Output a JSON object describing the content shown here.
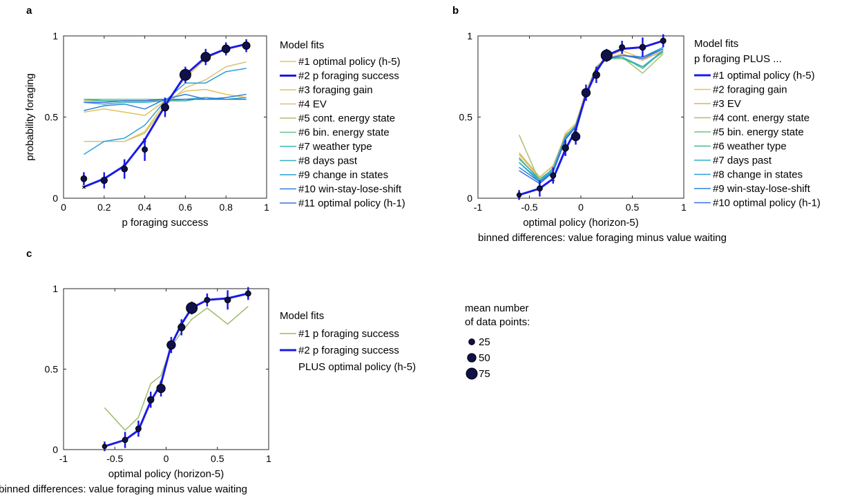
{
  "panel_labels": [
    "a",
    "b",
    "c"
  ],
  "legend_titles": {
    "a": "Model fits",
    "b_line1": "Model fits",
    "b_line2": "p foraging PLUS ...",
    "c": "Model fits"
  },
  "size_legend": {
    "title_line1": "mean number",
    "title_line2": "of data points:",
    "entries": [
      "25",
      "50",
      "75"
    ]
  },
  "chart_data": [
    {
      "id": "a",
      "type": "line",
      "title": "",
      "xlabel": "p foraging success",
      "ylabel": "probability foraging",
      "xlim": [
        0,
        1
      ],
      "ylim": [
        0,
        1
      ],
      "xticks": [
        "0",
        "0.2",
        "0.4",
        "0.6",
        "0.8",
        "1"
      ],
      "yticks": [
        "0",
        "0.5",
        "1"
      ],
      "legend_position": "right",
      "data_points": {
        "x": [
          0.1,
          0.2,
          0.3,
          0.4,
          0.5,
          0.6,
          0.7,
          0.8,
          0.9
        ],
        "y": [
          0.12,
          0.11,
          0.18,
          0.3,
          0.56,
          0.76,
          0.87,
          0.92,
          0.94
        ],
        "err": [
          0.02,
          0.03,
          0.04,
          0.05,
          0.04,
          0.03,
          0.03,
          0.02,
          0.02
        ],
        "n": [
          25,
          30,
          25,
          20,
          40,
          75,
          60,
          45,
          40
        ]
      },
      "series": [
        {
          "name": "#1 optimal policy (h-5)",
          "color": "#e8c84a",
          "width": 1.5,
          "values": [
            0.35,
            0.35,
            0.35,
            0.41,
            0.59,
            0.74,
            0.86,
            0.92,
            0.95
          ]
        },
        {
          "name": "#2 p foraging success",
          "color": "#1a1ae6",
          "width": 3,
          "values": [
            0.07,
            0.12,
            0.2,
            0.36,
            0.57,
            0.76,
            0.87,
            0.92,
            0.95
          ]
        },
        {
          "name": "#3 foraging gain",
          "color": "#e3c25a",
          "width": 1.5,
          "values": [
            0.53,
            0.55,
            0.53,
            0.51,
            0.6,
            0.66,
            0.67,
            0.64,
            0.62
          ]
        },
        {
          "name": "#4 EV",
          "color": "#d7c27a",
          "width": 1.5,
          "values": [
            0.35,
            0.35,
            0.35,
            0.4,
            0.57,
            0.68,
            0.73,
            0.81,
            0.84
          ]
        },
        {
          "name": "#5 cont. energy state",
          "color": "#a9c06a",
          "width": 1.5,
          "values": [
            0.6,
            0.6,
            0.6,
            0.6,
            0.6,
            0.61,
            0.61,
            0.61,
            0.61
          ]
        },
        {
          "name": "#6 bin. energy state",
          "color": "#6cc08a",
          "width": 1.5,
          "values": [
            0.61,
            0.61,
            0.61,
            0.61,
            0.61,
            0.61,
            0.61,
            0.61,
            0.61
          ]
        },
        {
          "name": "#7 weather type",
          "color": "#3ab8a8",
          "width": 1.5,
          "values": [
            0.61,
            0.6,
            0.6,
            0.6,
            0.61,
            0.61,
            0.62,
            0.61,
            0.61
          ]
        },
        {
          "name": "#8 days past",
          "color": "#2fb0c0",
          "width": 1.5,
          "values": [
            0.59,
            0.58,
            0.59,
            0.59,
            0.6,
            0.6,
            0.62,
            0.61,
            0.62
          ]
        },
        {
          "name": "#9 change in states",
          "color": "#2aa0d8",
          "width": 1.5,
          "values": [
            0.27,
            0.35,
            0.37,
            0.45,
            0.6,
            0.71,
            0.71,
            0.78,
            0.8
          ]
        },
        {
          "name": "#10 win-stay-lose-shift",
          "color": "#2a82d8",
          "width": 1.5,
          "values": [
            0.54,
            0.57,
            0.58,
            0.55,
            0.61,
            0.64,
            0.61,
            0.62,
            0.64
          ]
        },
        {
          "name": "#11 optimal policy (h-1)",
          "color": "#3a6ee0",
          "width": 1.5,
          "values": [
            0.59,
            0.59,
            0.6,
            0.6,
            0.61,
            0.61,
            0.61,
            0.61,
            0.61
          ]
        }
      ]
    },
    {
      "id": "b",
      "type": "line",
      "title": "",
      "xlabel": "optimal policy (horizon-5)",
      "xlabel2": "binned differences: value foraging minus value waiting",
      "ylabel": "",
      "xlim": [
        -1,
        1
      ],
      "ylim": [
        0,
        1
      ],
      "xticks": [
        "-1",
        "-0.5",
        "0",
        "0.5",
        "1"
      ],
      "yticks": [
        "0",
        "0.5",
        "1"
      ],
      "legend_position": "right",
      "data_points": {
        "x": [
          -0.6,
          -0.4,
          -0.27,
          -0.15,
          -0.05,
          0.05,
          0.15,
          0.25,
          0.4,
          0.6,
          0.8
        ],
        "y": [
          0.02,
          0.06,
          0.14,
          0.31,
          0.38,
          0.65,
          0.76,
          0.88,
          0.93,
          0.93,
          0.97
        ],
        "err": [
          0.01,
          0.03,
          0.03,
          0.03,
          0.03,
          0.03,
          0.03,
          0.02,
          0.02,
          0.04,
          0.02
        ],
        "n": [
          10,
          20,
          20,
          30,
          50,
          50,
          35,
          75,
          20,
          25,
          20
        ]
      },
      "series": [
        {
          "name": "#1 optimal policy (h-5)",
          "color": "#1a1ae6",
          "width": 3,
          "values": [
            0.02,
            0.06,
            0.12,
            0.3,
            0.42,
            0.64,
            0.78,
            0.88,
            0.92,
            0.93,
            0.97
          ]
        },
        {
          "name": "#2 foraging gain",
          "color": "#f0c040",
          "width": 1.5,
          "values": [
            0.27,
            0.12,
            0.18,
            0.4,
            0.46,
            0.66,
            0.81,
            0.87,
            0.91,
            0.86,
            0.9
          ]
        },
        {
          "name": "#3 EV",
          "color": "#d8b070",
          "width": 1.5,
          "values": [
            0.28,
            0.13,
            0.2,
            0.39,
            0.44,
            0.66,
            0.8,
            0.86,
            0.89,
            0.85,
            0.91
          ]
        },
        {
          "name": "#4 cont. energy state",
          "color": "#a8c070",
          "width": 1.5,
          "values": [
            0.39,
            0.1,
            0.19,
            0.38,
            0.45,
            0.64,
            0.81,
            0.86,
            0.87,
            0.77,
            0.89
          ]
        },
        {
          "name": "#5 bin. energy state",
          "color": "#70c080",
          "width": 1.5,
          "values": [
            0.24,
            0.12,
            0.18,
            0.38,
            0.44,
            0.64,
            0.8,
            0.86,
            0.86,
            0.81,
            0.9
          ]
        },
        {
          "name": "#6 weather type",
          "color": "#40b8a0",
          "width": 1.5,
          "values": [
            0.22,
            0.11,
            0.17,
            0.37,
            0.45,
            0.63,
            0.8,
            0.86,
            0.87,
            0.8,
            0.91
          ]
        },
        {
          "name": "#7 days past",
          "color": "#30b0c0",
          "width": 1.5,
          "values": [
            0.25,
            0.11,
            0.18,
            0.38,
            0.45,
            0.64,
            0.8,
            0.86,
            0.87,
            0.81,
            0.91
          ]
        },
        {
          "name": "#8 change in states",
          "color": "#28a0d8",
          "width": 1.5,
          "values": [
            0.22,
            0.1,
            0.17,
            0.37,
            0.44,
            0.64,
            0.79,
            0.86,
            0.88,
            0.87,
            0.93
          ]
        },
        {
          "name": "#9 win-stay-lose-shift",
          "color": "#2a82d8",
          "width": 1.5,
          "values": [
            0.19,
            0.1,
            0.16,
            0.36,
            0.44,
            0.64,
            0.8,
            0.86,
            0.88,
            0.87,
            0.92
          ]
        },
        {
          "name": "#10 optimal policy (h-1)",
          "color": "#3a6ee0",
          "width": 1.5,
          "values": [
            0.17,
            0.09,
            0.16,
            0.36,
            0.44,
            0.64,
            0.8,
            0.86,
            0.88,
            0.86,
            0.92
          ]
        }
      ]
    },
    {
      "id": "c",
      "type": "line",
      "title": "",
      "xlabel": "optimal policy (horizon-5)",
      "xlabel2": "binned differences: value foraging minus value waiting",
      "ylabel": "",
      "xlim": [
        -1,
        1
      ],
      "ylim": [
        0,
        1
      ],
      "xticks": [
        "-1",
        "-0.5",
        "0",
        "0.5",
        "1"
      ],
      "yticks": [
        "0",
        "0.5",
        "1"
      ],
      "legend_position": "right",
      "data_points": {
        "x": [
          -0.6,
          -0.4,
          -0.27,
          -0.15,
          -0.05,
          0.05,
          0.15,
          0.25,
          0.4,
          0.6,
          0.8
        ],
        "y": [
          0.02,
          0.06,
          0.13,
          0.31,
          0.38,
          0.65,
          0.76,
          0.88,
          0.93,
          0.93,
          0.97
        ],
        "err": [
          0.01,
          0.03,
          0.03,
          0.03,
          0.03,
          0.03,
          0.03,
          0.02,
          0.02,
          0.04,
          0.02
        ],
        "n": [
          10,
          20,
          20,
          30,
          50,
          50,
          35,
          75,
          20,
          25,
          20
        ]
      },
      "series": [
        {
          "name": "#1 p foraging success",
          "color": "#9cba6a",
          "width": 1.5,
          "values": [
            0.26,
            0.12,
            0.2,
            0.41,
            0.46,
            0.64,
            0.73,
            0.81,
            0.88,
            0.78,
            0.89
          ]
        },
        {
          "name": "#2 p foraging success",
          "name_line2": "PLUS optimal policy (h-5)",
          "color": "#1a1ae6",
          "width": 3,
          "values": [
            0.02,
            0.06,
            0.12,
            0.3,
            0.41,
            0.65,
            0.78,
            0.88,
            0.93,
            0.94,
            0.97
          ]
        }
      ]
    }
  ]
}
